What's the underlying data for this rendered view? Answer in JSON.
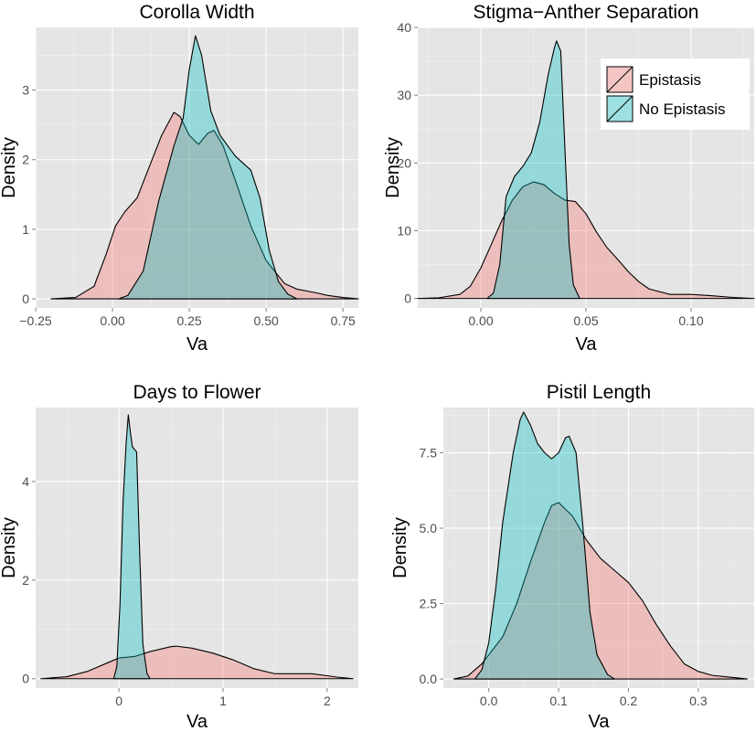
{
  "figure": {
    "legend": {
      "position": "top-right of Stigma−Anther Separation panel",
      "items": [
        {
          "label": "Epistasis",
          "color": "#f8766d"
        },
        {
          "label": "No Epistasis",
          "color": "#00bfc4"
        }
      ]
    },
    "fill_opacity": 0.35
  },
  "chart_data": [
    {
      "type": "area",
      "title": "Corolla Width",
      "xlabel": "Va",
      "ylabel": "Density",
      "xlim": [
        -0.25,
        0.8
      ],
      "ylim": [
        -0.13,
        3.9
      ],
      "xticks": [
        -0.25,
        0.0,
        0.25,
        0.5,
        0.75
      ],
      "xtick_labels": [
        "−0.25",
        "0.00",
        "0.25",
        "0.50",
        "0.75"
      ],
      "yticks": [
        0,
        1,
        2,
        3
      ],
      "ytick_labels": [
        "0",
        "1",
        "2",
        "3"
      ],
      "grid": true,
      "series": [
        {
          "name": "Epistasis",
          "color": "#f8766d",
          "points": [
            [
              -0.2,
              0
            ],
            [
              -0.12,
              0.02
            ],
            [
              -0.06,
              0.18
            ],
            [
              -0.02,
              0.65
            ],
            [
              0.01,
              1.05
            ],
            [
              0.04,
              1.25
            ],
            [
              0.08,
              1.45
            ],
            [
              0.12,
              1.9
            ],
            [
              0.16,
              2.35
            ],
            [
              0.2,
              2.68
            ],
            [
              0.22,
              2.62
            ],
            [
              0.25,
              2.35
            ],
            [
              0.28,
              2.22
            ],
            [
              0.31,
              2.38
            ],
            [
              0.33,
              2.42
            ],
            [
              0.36,
              2.2
            ],
            [
              0.4,
              1.7
            ],
            [
              0.45,
              1.05
            ],
            [
              0.5,
              0.55
            ],
            [
              0.56,
              0.22
            ],
            [
              0.6,
              0.14
            ],
            [
              0.66,
              0.09
            ],
            [
              0.7,
              0.05
            ],
            [
              0.75,
              0.02
            ],
            [
              0.8,
              0
            ]
          ]
        },
        {
          "name": "No Epistasis",
          "color": "#00bfc4",
          "points": [
            [
              0.02,
              0
            ],
            [
              0.05,
              0.05
            ],
            [
              0.1,
              0.4
            ],
            [
              0.15,
              1.4
            ],
            [
              0.2,
              2.2
            ],
            [
              0.23,
              2.6
            ],
            [
              0.25,
              3.3
            ],
            [
              0.27,
              3.78
            ],
            [
              0.29,
              3.5
            ],
            [
              0.32,
              2.7
            ],
            [
              0.35,
              2.35
            ],
            [
              0.4,
              2.05
            ],
            [
              0.45,
              1.85
            ],
            [
              0.48,
              1.45
            ],
            [
              0.51,
              0.7
            ],
            [
              0.54,
              0.25
            ],
            [
              0.57,
              0.07
            ],
            [
              0.6,
              0
            ]
          ]
        }
      ]
    },
    {
      "type": "area",
      "title": "Stigma−Anther Separation",
      "xlabel": "Va",
      "ylabel": "Density",
      "xlim": [
        -0.03,
        0.13
      ],
      "ylim": [
        -1.4,
        40
      ],
      "xticks": [
        0.0,
        0.05,
        0.1
      ],
      "xtick_labels": [
        "0.00",
        "0.05",
        "0.10"
      ],
      "yticks": [
        0,
        10,
        20,
        30,
        40
      ],
      "ytick_labels": [
        "0",
        "10",
        "20",
        "30",
        "40"
      ],
      "grid": true,
      "series": [
        {
          "name": "Epistasis",
          "color": "#f8766d",
          "points": [
            [
              -0.03,
              0
            ],
            [
              -0.02,
              0.1
            ],
            [
              -0.01,
              0.6
            ],
            [
              -0.005,
              1.8
            ],
            [
              0.0,
              4.5
            ],
            [
              0.005,
              8.0
            ],
            [
              0.01,
              11.5
            ],
            [
              0.015,
              14.5
            ],
            [
              0.02,
              16.5
            ],
            [
              0.025,
              17.2
            ],
            [
              0.03,
              16.8
            ],
            [
              0.035,
              15.5
            ],
            [
              0.04,
              14.5
            ],
            [
              0.045,
              14.3
            ],
            [
              0.05,
              12.5
            ],
            [
              0.055,
              9.8
            ],
            [
              0.06,
              7.5
            ],
            [
              0.065,
              5.8
            ],
            [
              0.07,
              4.0
            ],
            [
              0.075,
              2.5
            ],
            [
              0.08,
              1.4
            ],
            [
              0.09,
              0.6
            ],
            [
              0.1,
              0.6
            ],
            [
              0.11,
              0.4
            ],
            [
              0.12,
              0.15
            ],
            [
              0.13,
              0
            ]
          ]
        },
        {
          "name": "No Epistasis",
          "color": "#00bfc4",
          "points": [
            [
              0.003,
              0
            ],
            [
              0.006,
              0.8
            ],
            [
              0.009,
              5.0
            ],
            [
              0.012,
              15.0
            ],
            [
              0.016,
              18.0
            ],
            [
              0.02,
              19.5
            ],
            [
              0.024,
              21.5
            ],
            [
              0.028,
              26.0
            ],
            [
              0.032,
              33.0
            ],
            [
              0.035,
              37.0
            ],
            [
              0.036,
              38.0
            ],
            [
              0.038,
              36.5
            ],
            [
              0.04,
              22.0
            ],
            [
              0.042,
              8.0
            ],
            [
              0.044,
              2.0
            ],
            [
              0.047,
              0
            ]
          ]
        }
      ]
    },
    {
      "type": "area",
      "title": "Days to Flower",
      "xlabel": "Va",
      "ylabel": "Density",
      "xlim": [
        -0.8,
        2.3
      ],
      "ylim": [
        -0.19,
        5.5
      ],
      "xticks": [
        0,
        1,
        2
      ],
      "xtick_labels": [
        "0",
        "1",
        "2"
      ],
      "yticks": [
        0,
        2,
        4
      ],
      "ytick_labels": [
        "0",
        "2",
        "4"
      ],
      "grid": true,
      "series": [
        {
          "name": "Epistasis",
          "color": "#f8766d",
          "points": [
            [
              -0.75,
              0
            ],
            [
              -0.5,
              0.04
            ],
            [
              -0.3,
              0.15
            ],
            [
              -0.1,
              0.33
            ],
            [
              0.0,
              0.42
            ],
            [
              0.15,
              0.45
            ],
            [
              0.3,
              0.55
            ],
            [
              0.5,
              0.65
            ],
            [
              0.55,
              0.66
            ],
            [
              0.7,
              0.62
            ],
            [
              0.9,
              0.52
            ],
            [
              1.1,
              0.38
            ],
            [
              1.3,
              0.2
            ],
            [
              1.5,
              0.1
            ],
            [
              1.7,
              0.1
            ],
            [
              1.85,
              0.1
            ],
            [
              2.0,
              0.06
            ],
            [
              2.1,
              0.03
            ],
            [
              2.25,
              0
            ]
          ]
        },
        {
          "name": "No Epistasis",
          "color": "#00bfc4",
          "points": [
            [
              -0.05,
              0
            ],
            [
              -0.02,
              0.25
            ],
            [
              0.01,
              1.5
            ],
            [
              0.04,
              3.6
            ],
            [
              0.07,
              4.8
            ],
            [
              0.09,
              5.35
            ],
            [
              0.11,
              5.0
            ],
            [
              0.13,
              4.7
            ],
            [
              0.17,
              4.6
            ],
            [
              0.2,
              2.5
            ],
            [
              0.23,
              0.7
            ],
            [
              0.27,
              0.1
            ],
            [
              0.3,
              0
            ]
          ]
        }
      ]
    },
    {
      "type": "area",
      "title": "Pistil Length",
      "xlabel": "Va",
      "ylabel": "Density",
      "xlim": [
        -0.065,
        0.38
      ],
      "ylim": [
        -0.3,
        9.0
      ],
      "xticks": [
        0.0,
        0.1,
        0.2,
        0.3
      ],
      "xtick_labels": [
        "0.0",
        "0.1",
        "0.2",
        "0.3"
      ],
      "yticks": [
        0.0,
        2.5,
        5.0,
        7.5
      ],
      "ytick_labels": [
        "0.0",
        "2.5",
        "5.0",
        "7.5"
      ],
      "grid": true,
      "series": [
        {
          "name": "Epistasis",
          "color": "#f8766d",
          "points": [
            [
              -0.05,
              0
            ],
            [
              -0.03,
              0.1
            ],
            [
              -0.01,
              0.5
            ],
            [
              0.0,
              0.8
            ],
            [
              0.02,
              1.4
            ],
            [
              0.04,
              2.5
            ],
            [
              0.06,
              3.9
            ],
            [
              0.08,
              5.2
            ],
            [
              0.09,
              5.75
            ],
            [
              0.1,
              5.85
            ],
            [
              0.12,
              5.4
            ],
            [
              0.14,
              4.6
            ],
            [
              0.16,
              4.0
            ],
            [
              0.18,
              3.6
            ],
            [
              0.2,
              3.2
            ],
            [
              0.22,
              2.6
            ],
            [
              0.24,
              1.8
            ],
            [
              0.26,
              1.1
            ],
            [
              0.28,
              0.5
            ],
            [
              0.3,
              0.25
            ],
            [
              0.32,
              0.12
            ],
            [
              0.35,
              0.05
            ],
            [
              0.37,
              0
            ]
          ]
        },
        {
          "name": "No Epistasis",
          "color": "#00bfc4",
          "points": [
            [
              -0.02,
              0
            ],
            [
              -0.01,
              0.3
            ],
            [
              0.0,
              1.2
            ],
            [
              0.01,
              3.0
            ],
            [
              0.02,
              5.2
            ],
            [
              0.035,
              7.5
            ],
            [
              0.045,
              8.6
            ],
            [
              0.05,
              8.85
            ],
            [
              0.06,
              8.4
            ],
            [
              0.07,
              7.8
            ],
            [
              0.08,
              7.5
            ],
            [
              0.09,
              7.3
            ],
            [
              0.1,
              7.5
            ],
            [
              0.11,
              8.0
            ],
            [
              0.115,
              8.05
            ],
            [
              0.125,
              7.5
            ],
            [
              0.135,
              5.0
            ],
            [
              0.145,
              2.2
            ],
            [
              0.155,
              0.8
            ],
            [
              0.17,
              0.15
            ],
            [
              0.18,
              0
            ]
          ]
        }
      ]
    }
  ]
}
